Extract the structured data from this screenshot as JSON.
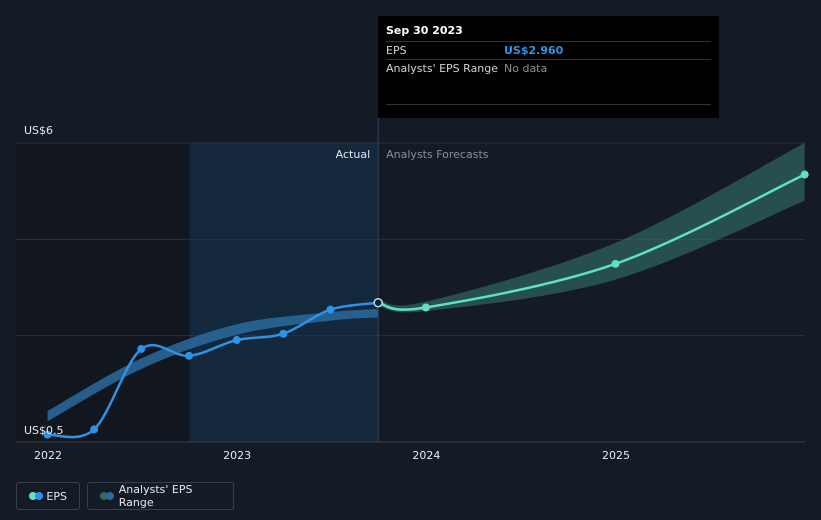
{
  "tooltip": {
    "date": "Sep 30 2023",
    "rows": [
      {
        "label": "EPS",
        "value": "US$2.960"
      },
      {
        "label": "Analysts' EPS Range",
        "value": "No data"
      }
    ]
  },
  "colors": {
    "actual": "#2e93e6",
    "forecast": "#5fe0c7",
    "range_actual": "#2a6a9e",
    "range_forecast": "#2f6b62",
    "background": "#151b26"
  },
  "chart_data": {
    "type": "line",
    "labels": {
      "actual": "Actual",
      "forecast": "Analysts Forecasts"
    },
    "y_tick_labels": [
      "US$6",
      "US$0.5"
    ],
    "ylim": [
      0.5,
      6
    ],
    "x_ticks": [
      "2022",
      "2023",
      "2024",
      "2025"
    ],
    "xlim": [
      "2022-01-01",
      "2026-01-01"
    ],
    "divider_date": "2023-09-30",
    "shade_start_date": "2022-10-01",
    "grid": true,
    "legend_position": "bottom-left",
    "series": [
      {
        "name": "EPS",
        "style": "actual",
        "x": [
          "2021-12-31",
          "2022-03-31",
          "2022-06-30",
          "2022-09-30",
          "2022-12-31",
          "2023-03-31",
          "2023-06-30",
          "2023-09-30"
        ],
        "y": [
          0.45,
          0.55,
          2.08,
          1.95,
          2.25,
          2.37,
          2.83,
          2.96
        ]
      },
      {
        "name": "EPS",
        "style": "forecast",
        "x": [
          "2023-09-30",
          "2023-12-31",
          "2024-12-31",
          "2025-12-31"
        ],
        "y": [
          2.96,
          2.87,
          3.7,
          5.4
        ]
      },
      {
        "name": "Analysts' EPS Range",
        "style": "range_actual",
        "x": [
          "2021-12-31",
          "2022-06-30",
          "2022-12-31",
          "2023-06-30",
          "2023-09-30"
        ],
        "low": [
          0.7,
          1.7,
          2.35,
          2.62,
          2.68
        ],
        "high": [
          0.9,
          1.9,
          2.55,
          2.78,
          2.84
        ]
      },
      {
        "name": "Analysts' EPS Range",
        "style": "range_forecast",
        "x": [
          "2023-09-30",
          "2023-12-31",
          "2024-12-31",
          "2025-12-31"
        ],
        "low": [
          2.9,
          2.8,
          3.4,
          4.9
        ],
        "high": [
          3.02,
          2.98,
          4.1,
          6.0
        ]
      }
    ],
    "legend": [
      "EPS",
      "Analysts' EPS Range"
    ]
  }
}
